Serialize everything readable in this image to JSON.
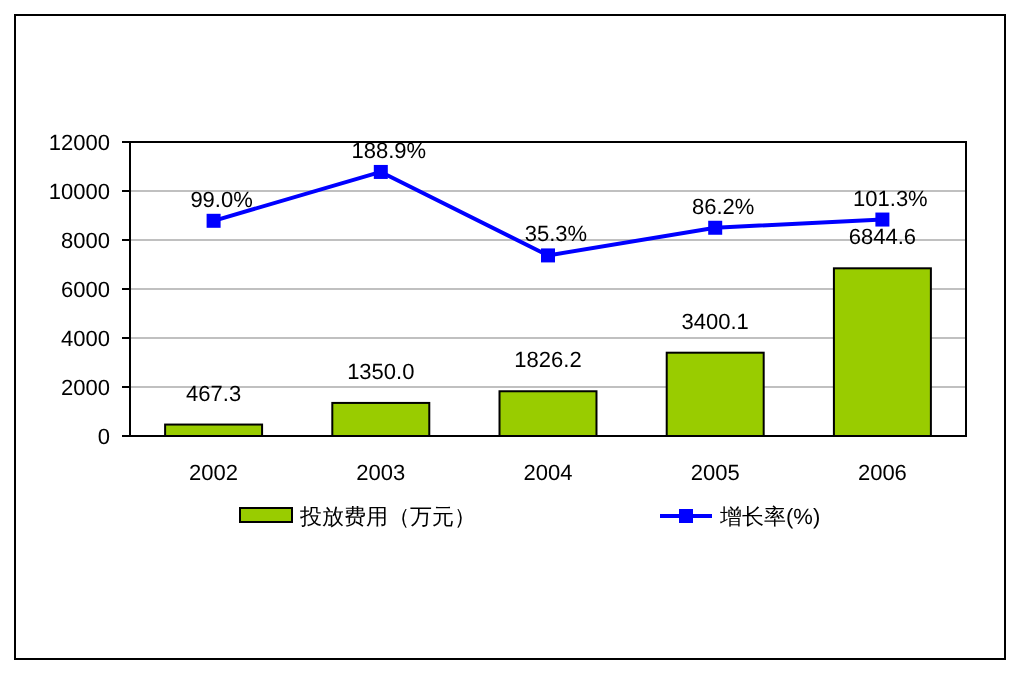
{
  "chart_data": {
    "type": "bar",
    "categories": [
      "2002",
      "2003",
      "2004",
      "2005",
      "2006"
    ],
    "series": [
      {
        "name": "投放费用（万元）",
        "color": "#99cc00",
        "values": [
          467.3,
          1350.0,
          1826.2,
          3400.1,
          6844.6
        ],
        "value_labels": [
          "467.3",
          "1350.0",
          "1826.2",
          "3400.1",
          "6844.6"
        ]
      },
      {
        "name": "增长率(%)",
        "type": "line",
        "axis": "y2",
        "color": "#0000ff",
        "marker": "square",
        "values": [
          99.0,
          188.9,
          35.3,
          86.2,
          101.3
        ],
        "value_labels": [
          "99.0%",
          "188.9%",
          "35.3%",
          "86.2%",
          "101.3%"
        ]
      }
    ],
    "ylim": [
      0,
      12000
    ],
    "yticks": [
      0,
      2000,
      4000,
      6000,
      8000,
      10000,
      12000
    ],
    "y2lim": [
      -297,
      244
    ],
    "grid": "y",
    "legend": "bottom"
  }
}
